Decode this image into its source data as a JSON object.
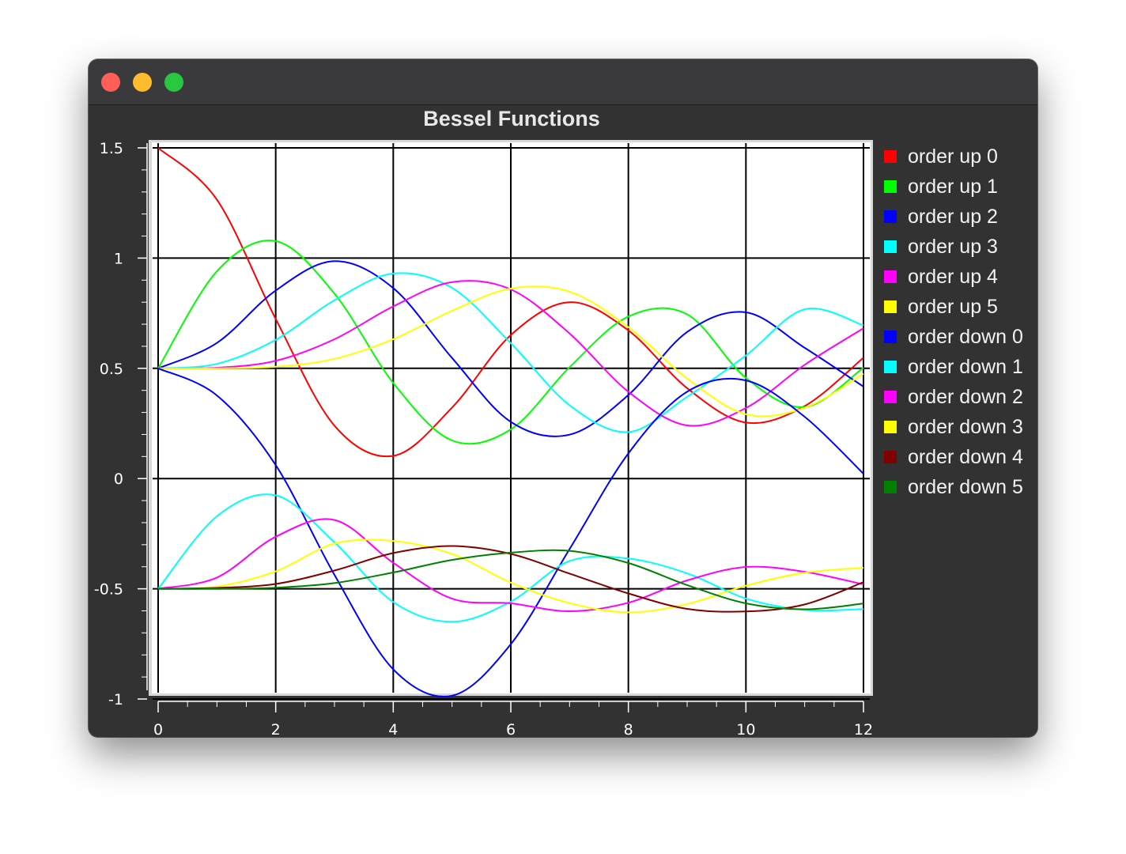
{
  "window": {
    "title_lights": [
      "close-icon",
      "minimize-icon",
      "maximize-icon"
    ]
  },
  "chart_data": {
    "type": "line",
    "title": "Bessel Functions",
    "xlabel": "",
    "ylabel": "",
    "xlim": [
      0,
      12
    ],
    "ylim": [
      -1,
      1.5
    ],
    "x_ticks": [
      "0",
      "2",
      "4",
      "6",
      "8",
      "10",
      "12"
    ],
    "y_ticks": [
      "1.5",
      "1",
      "0.5",
      "0",
      "-0.5",
      "-1"
    ],
    "grid": true,
    "legend_position": "right",
    "sample_x": [
      0,
      1,
      2,
      3,
      4,
      5,
      6,
      7,
      8,
      9,
      10,
      11,
      12
    ],
    "series": [
      {
        "name": "order up 0",
        "color": "#ff0000",
        "values": [
          1.5,
          1.265,
          0.724,
          0.24,
          0.103,
          0.322,
          0.651,
          0.8,
          0.672,
          0.41,
          0.254,
          0.329,
          0.548
        ]
      },
      {
        "name": "order up 1",
        "color": "#00ff00",
        "values": [
          0.5,
          0.94,
          1.077,
          0.839,
          0.434,
          0.173,
          0.223,
          0.505,
          0.735,
          0.745,
          0.457,
          0.324,
          0.503
        ]
      },
      {
        "name": "order up 2",
        "color": "#0000ff",
        "values": [
          0.5,
          0.615,
          0.853,
          0.986,
          0.864,
          0.547,
          0.257,
          0.199,
          0.379,
          0.665,
          0.754,
          0.593,
          0.417
        ]
      },
      {
        "name": "order up 3",
        "color": "#00ffff",
        "values": [
          0.5,
          0.52,
          0.629,
          0.809,
          0.93,
          0.865,
          0.614,
          0.333,
          0.211,
          0.371,
          0.558,
          0.768,
          0.695
        ]
      },
      {
        "name": "order up 4",
        "color": "#ff00ff",
        "values": [
          0.5,
          0.503,
          0.534,
          0.632,
          0.781,
          0.891,
          0.858,
          0.658,
          0.394,
          0.241,
          0.32,
          0.516,
          0.682
        ]
      },
      {
        "name": "order up 5",
        "color": "#ffff00",
        "values": [
          0.5,
          0.5,
          0.507,
          0.543,
          0.632,
          0.761,
          0.862,
          0.848,
          0.687,
          0.454,
          0.292,
          0.321,
          0.475
        ]
      },
      {
        "name": "order down 0",
        "color": "#0000ff",
        "values": [
          0.5,
          0.377,
          0.061,
          -0.437,
          -0.865,
          -0.985,
          -0.751,
          -0.32,
          0.114,
          0.394,
          0.445,
          0.28,
          0.022
        ]
      },
      {
        "name": "order down 1",
        "color": "#00ffff",
        "values": [
          -0.5,
          -0.171,
          -0.076,
          -0.289,
          -0.56,
          -0.65,
          -0.558,
          -0.374,
          -0.363,
          -0.43,
          -0.544,
          -0.596,
          -0.592
        ]
      },
      {
        "name": "order down 2",
        "color": "#ff00ff",
        "values": [
          -0.5,
          -0.449,
          -0.264,
          -0.188,
          -0.382,
          -0.545,
          -0.566,
          -0.602,
          -0.563,
          -0.462,
          -0.401,
          -0.423,
          -0.48
        ]
      },
      {
        "name": "order down 3",
        "color": "#ffff00",
        "values": [
          -0.5,
          -0.49,
          -0.421,
          -0.295,
          -0.283,
          -0.342,
          -0.472,
          -0.565,
          -0.607,
          -0.569,
          -0.486,
          -0.427,
          -0.405
        ]
      },
      {
        "name": "order down 4",
        "color": "#800000",
        "values": [
          -0.5,
          -0.496,
          -0.478,
          -0.417,
          -0.338,
          -0.306,
          -0.342,
          -0.431,
          -0.521,
          -0.591,
          -0.603,
          -0.571,
          -0.47
        ]
      },
      {
        "name": "order down 5",
        "color": "#008000",
        "values": [
          -0.5,
          -0.5,
          -0.495,
          -0.474,
          -0.426,
          -0.369,
          -0.336,
          -0.328,
          -0.383,
          -0.483,
          -0.566,
          -0.593,
          -0.567
        ]
      }
    ]
  }
}
